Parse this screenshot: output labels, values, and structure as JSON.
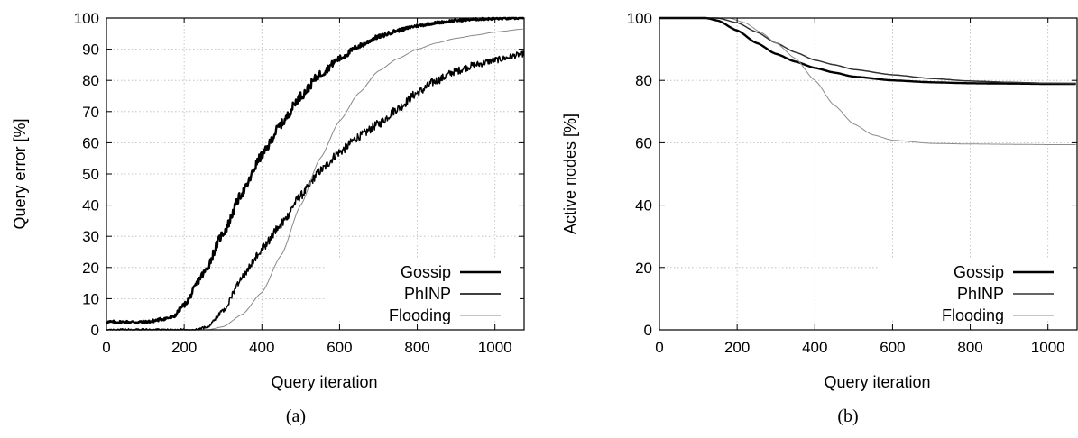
{
  "chart_data": [
    {
      "type": "line",
      "caption": "(a)",
      "xlabel": "Query iteration",
      "ylabel": "Query error [%]",
      "xlim": [
        0,
        1075
      ],
      "ylim": [
        0,
        100
      ],
      "xticks": [
        0,
        200,
        400,
        600,
        800,
        1000
      ],
      "yticks": [
        0,
        10,
        20,
        30,
        40,
        50,
        60,
        70,
        80,
        90,
        100
      ],
      "grid": true,
      "legend": "bottom-right",
      "series": [
        {
          "name": "Gossip",
          "color": "#000000",
          "style": "thick",
          "noisy": true,
          "x": [
            0,
            100,
            170,
            200,
            250,
            300,
            350,
            400,
            450,
            500,
            550,
            600,
            650,
            700,
            750,
            800,
            850,
            900,
            950,
            1000,
            1075
          ],
          "y": [
            2.5,
            2.5,
            4,
            8,
            18,
            31,
            44,
            56,
            66,
            75,
            82,
            87,
            91,
            94,
            96,
            97.5,
            98.5,
            99.2,
            99.6,
            99.8,
            100
          ]
        },
        {
          "name": "PhINP",
          "color": "#000000",
          "style": "medium",
          "noisy": true,
          "x": [
            0,
            230,
            260,
            300,
            350,
            400,
            450,
            500,
            550,
            600,
            650,
            700,
            750,
            800,
            850,
            900,
            950,
            1000,
            1075
          ],
          "y": [
            0,
            0,
            1,
            6,
            17,
            26,
            34,
            43,
            51,
            57,
            62,
            66,
            71,
            76,
            80,
            83,
            85,
            86.5,
            88.5
          ]
        },
        {
          "name": "Flooding",
          "color": "#888888",
          "style": "thin",
          "noisy": false,
          "x": [
            0,
            260,
            300,
            350,
            400,
            450,
            500,
            550,
            600,
            650,
            700,
            750,
            800,
            850,
            900,
            950,
            1000,
            1075
          ],
          "y": [
            0,
            0,
            1,
            5,
            12,
            24,
            40,
            55,
            67,
            76,
            83,
            87,
            90,
            92,
            93.5,
            94.5,
            95.5,
            96.5
          ]
        }
      ]
    },
    {
      "type": "line",
      "caption": "(b)",
      "xlabel": "Query iteration",
      "ylabel": "Active nodes [%]",
      "xlim": [
        0,
        1075
      ],
      "ylim": [
        0,
        100
      ],
      "xticks": [
        0,
        200,
        400,
        600,
        800,
        1000
      ],
      "yticks": [
        0,
        20,
        40,
        60,
        80,
        100
      ],
      "grid": true,
      "legend": "bottom-right",
      "series": [
        {
          "name": "Gossip",
          "color": "#000000",
          "style": "thick",
          "noisy": false,
          "x": [
            0,
            120,
            150,
            200,
            250,
            300,
            350,
            400,
            450,
            500,
            600,
            700,
            800,
            900,
            1000,
            1075
          ],
          "y": [
            100,
            100,
            99.2,
            96,
            92,
            88.5,
            86,
            84,
            82.5,
            81.2,
            80,
            79.4,
            79.1,
            79,
            78.9,
            78.9
          ]
        },
        {
          "name": "PhINP",
          "color": "#333333",
          "style": "medium",
          "noisy": false,
          "x": [
            0,
            150,
            200,
            250,
            300,
            350,
            400,
            450,
            500,
            600,
            700,
            800,
            900,
            1000,
            1075
          ],
          "y": [
            100,
            100,
            98.5,
            95.5,
            92,
            89,
            86.5,
            85,
            83.5,
            81.8,
            80.6,
            79.8,
            79.4,
            79.1,
            79
          ]
        },
        {
          "name": "Flooding",
          "color": "#8c8c8c",
          "style": "thin",
          "noisy": false,
          "x": [
            0,
            180,
            220,
            260,
            300,
            350,
            400,
            450,
            500,
            550,
            600,
            700,
            800,
            900,
            1000,
            1075
          ],
          "y": [
            100,
            100,
            98.5,
            95.5,
            92,
            87,
            80,
            72,
            66,
            62.5,
            60.8,
            59.8,
            59.6,
            59.5,
            59.4,
            59.4
          ]
        }
      ]
    }
  ]
}
